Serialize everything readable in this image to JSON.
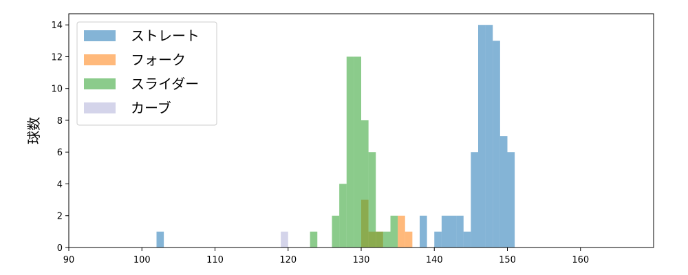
{
  "chart_data": {
    "type": "bar",
    "subtype": "histogram-overlay",
    "title": "",
    "xlabel": "",
    "ylabel": "球数",
    "xlim": [
      90,
      170
    ],
    "ylim": [
      0,
      14.7
    ],
    "xticks": [
      90,
      100,
      110,
      120,
      130,
      140,
      150,
      160
    ],
    "yticks": [
      0,
      2,
      4,
      6,
      8,
      10,
      12,
      14
    ],
    "grid": false,
    "legend_position": "top-left",
    "series": [
      {
        "name": "ストレート",
        "color": "#1f77b4",
        "bins": [
          {
            "x0": 102,
            "x1": 103,
            "count": 1
          },
          {
            "x0": 138,
            "x1": 139,
            "count": 2
          },
          {
            "x0": 140,
            "x1": 141,
            "count": 1
          },
          {
            "x0": 141,
            "x1": 142,
            "count": 2
          },
          {
            "x0": 142,
            "x1": 143,
            "count": 2
          },
          {
            "x0": 143,
            "x1": 144,
            "count": 2
          },
          {
            "x0": 144,
            "x1": 145,
            "count": 1
          },
          {
            "x0": 145,
            "x1": 146,
            "count": 6
          },
          {
            "x0": 146,
            "x1": 147,
            "count": 14
          },
          {
            "x0": 147,
            "x1": 148,
            "count": 14
          },
          {
            "x0": 148,
            "x1": 149,
            "count": 13
          },
          {
            "x0": 149,
            "x1": 150,
            "count": 7
          },
          {
            "x0": 150,
            "x1": 151,
            "count": 6
          }
        ]
      },
      {
        "name": "フォーク",
        "color": "#ff7f0e",
        "bins": [
          {
            "x0": 130,
            "x1": 131,
            "count": 3
          },
          {
            "x0": 131,
            "x1": 132,
            "count": 1
          },
          {
            "x0": 132,
            "x1": 133,
            "count": 1
          },
          {
            "x0": 135,
            "x1": 136,
            "count": 2
          },
          {
            "x0": 136,
            "x1": 137,
            "count": 1
          }
        ]
      },
      {
        "name": "スライダー",
        "color": "#2ca02c",
        "bins": [
          {
            "x0": 123,
            "x1": 124,
            "count": 1
          },
          {
            "x0": 126,
            "x1": 127,
            "count": 2
          },
          {
            "x0": 127,
            "x1": 128,
            "count": 4
          },
          {
            "x0": 128,
            "x1": 129,
            "count": 12
          },
          {
            "x0": 129,
            "x1": 130,
            "count": 12
          },
          {
            "x0": 130,
            "x1": 131,
            "count": 8
          },
          {
            "x0": 131,
            "x1": 132,
            "count": 6
          },
          {
            "x0": 132,
            "x1": 133,
            "count": 1
          },
          {
            "x0": 133,
            "x1": 134,
            "count": 1
          },
          {
            "x0": 134,
            "x1": 135,
            "count": 2
          }
        ]
      },
      {
        "name": "カーブ",
        "color": "#b0b0d8",
        "bins": [
          {
            "x0": 119,
            "x1": 120,
            "count": 1
          }
        ]
      }
    ]
  }
}
